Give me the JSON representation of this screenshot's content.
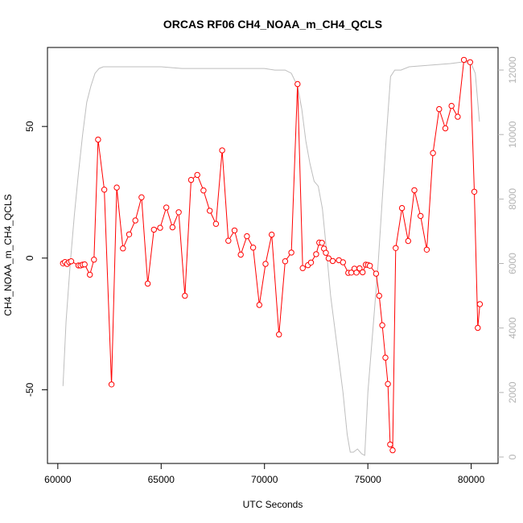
{
  "chart_data": {
    "type": "line",
    "title": "ORCAS RF06 CH4_NOAA_m_CH4_QCLS",
    "xlabel": "UTC Seconds",
    "ylabel": "CH4_NOAA_m_CH4_QCLS",
    "xlim": [
      59500,
      81300
    ],
    "ylim": [
      -78,
      80
    ],
    "y2lim": [
      -200,
      12700
    ],
    "x_ticks": [
      60000,
      65000,
      70000,
      75000,
      80000
    ],
    "y_ticks": [
      -50,
      0,
      50
    ],
    "y2_ticks": [
      0,
      2000,
      4000,
      6000,
      8000,
      10000,
      12000
    ],
    "x_tick_labels": [
      "60000",
      "65000",
      "70000",
      "75000",
      "80000"
    ],
    "y_tick_labels": [
      "-50",
      "0",
      "50"
    ],
    "y2_tick_labels": [
      "0",
      "2000",
      "4000",
      "6000",
      "8000",
      "10000",
      "12000"
    ],
    "colors": {
      "series": "#ff0000",
      "altitude": "#bebebe"
    },
    "series": [
      {
        "color": "#ff0000",
        "marker": "open-circle",
        "x": [
          60250,
          60350,
          60450,
          60550,
          60650,
          61000,
          61100,
          61200,
          61300,
          61550,
          61750,
          61950,
          62250,
          62600,
          62850,
          63150,
          63450,
          63750,
          64050,
          64350,
          64650,
          64950,
          65250,
          65550,
          65850,
          66150,
          66450,
          66750,
          67050,
          67350,
          67650,
          67950,
          68250,
          68550,
          68850,
          69150,
          69450,
          69750,
          70050,
          70350,
          70700,
          71000,
          71300,
          71600,
          71850,
          72100,
          72250,
          72500,
          72650,
          72780,
          72880,
          72970,
          73100,
          73300,
          73600,
          73800,
          74050,
          74200,
          74350,
          74450,
          74600,
          74750,
          74900,
          75000,
          75100,
          75400,
          75550,
          75700,
          75850,
          75970,
          76080,
          76200,
          76350,
          76650,
          76950,
          77250,
          77550,
          77850,
          78150,
          78450,
          78750,
          79050,
          79350,
          79650,
          79950,
          80150,
          80320,
          80420
        ],
        "y": [
          -2.0,
          -1.5,
          -2.2,
          -1.5,
          -1.2,
          -2.8,
          -2.8,
          -2.5,
          -2.4,
          -6.3,
          -0.6,
          45.0,
          26.0,
          -48.0,
          26.8,
          3.7,
          9.0,
          14.3,
          23.1,
          -9.7,
          10.8,
          11.5,
          19.2,
          11.7,
          17.4,
          -14.3,
          29.7,
          31.6,
          25.7,
          18.0,
          13.0,
          40.9,
          6.6,
          10.5,
          1.3,
          8.3,
          4.0,
          -17.8,
          -2.2,
          8.9,
          -29.0,
          -1.2,
          2.1,
          66.1,
          -3.8,
          -2.7,
          -1.7,
          1.5,
          5.9,
          5.8,
          3.6,
          2.0,
          -0.1,
          -1.1,
          -0.8,
          -1.6,
          -5.6,
          -5.5,
          -4.0,
          -5.5,
          -3.9,
          -5.4,
          -2.5,
          -2.6,
          -2.9,
          -5.9,
          -14.3,
          -25.5,
          -37.8,
          -47.8,
          -70.8,
          -73.0,
          3.8,
          19.0,
          6.5,
          25.8,
          16.0,
          3.2,
          39.9,
          56.6,
          49.3,
          57.8,
          53.7,
          75.3,
          74.4,
          25.2,
          -26.5,
          -17.5
        ]
      },
      {
        "color": "#bebebe",
        "axis": "right",
        "x": [
          60250,
          60400,
          60600,
          60800,
          61000,
          61200,
          61400,
          61600,
          61800,
          62000,
          62200,
          62500,
          63000,
          64000,
          65000,
          66000,
          67000,
          68000,
          69000,
          70000,
          70500,
          71000,
          71300,
          71600,
          71800,
          72000,
          72200,
          72400,
          72600,
          72800,
          73000,
          73200,
          73500,
          73800,
          74000,
          74150,
          74300,
          74500,
          74700,
          74850,
          75000,
          75250,
          75500,
          75700,
          75900,
          76100,
          76300,
          76600,
          77000,
          78000,
          79000,
          79600,
          80000,
          80200,
          80400
        ],
        "y": [
          2200,
          4200,
          6000,
          7500,
          8800,
          10000,
          11000,
          11500,
          11900,
          12050,
          12100,
          12100,
          12100,
          12100,
          12100,
          12050,
          12050,
          12050,
          12050,
          12050,
          12000,
          12000,
          11900,
          11500,
          10800,
          9800,
          9100,
          8550,
          8400,
          7700,
          6400,
          5000,
          3500,
          2000,
          700,
          150,
          150,
          250,
          100,
          50,
          2000,
          4000,
          6000,
          8000,
          10000,
          11800,
          12000,
          12000,
          12100,
          12150,
          12200,
          12250,
          12200,
          11900,
          10400
        ]
      }
    ]
  }
}
